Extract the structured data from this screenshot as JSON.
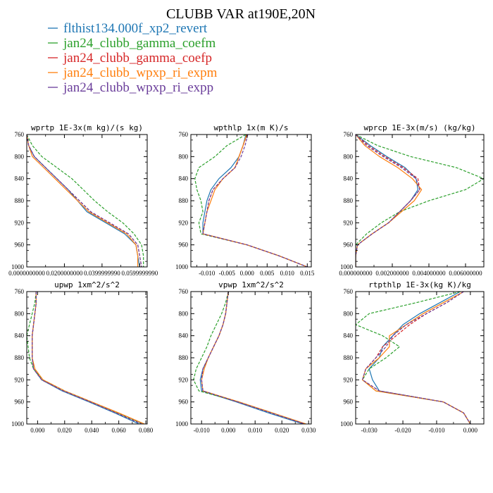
{
  "figure": {
    "title": "CLUBB VAR at190E,20N",
    "y_axis": {
      "ylim": [
        760,
        1000
      ],
      "ticks": [
        760,
        800,
        840,
        880,
        920,
        960,
        1000
      ],
      "inverted": true
    }
  },
  "legend": {
    "placement": "top-left",
    "items": [
      {
        "label": "flthist134.000f_xp2_revert",
        "color": "#1f77b4",
        "dash": "solid"
      },
      {
        "label": "jan24_clubb_gamma_coefm",
        "color": "#2ca02c",
        "dash": "dashed"
      },
      {
        "label": "jan24_clubb_gamma_coefp",
        "color": "#d62728",
        "dash": "dashed"
      },
      {
        "label": "jan24_clubb_wpxp_ri_expm",
        "color": "#ff7f0e",
        "dash": "solid"
      },
      {
        "label": "jan24_clubb_wpxp_ri_expp",
        "color": "#6a3d9a",
        "dash": "dashed"
      }
    ]
  },
  "chart_data": [
    {
      "type": "line",
      "title": "wprtp  1E-3x(m kg)/(s kg)",
      "xlim": [
        0,
        0.064
      ],
      "xticks": [
        "0.0000000000",
        "0.0200000000",
        "0.0399999990",
        "0.0599999990"
      ],
      "xtick_values": [
        0,
        0.02,
        0.04,
        0.06
      ],
      "y": [
        760,
        780,
        800,
        820,
        840,
        860,
        880,
        900,
        920,
        940,
        960,
        980,
        1000
      ],
      "series": [
        {
          "x": [
            0.0,
            0.001,
            0.004,
            0.01,
            0.016,
            0.022,
            0.027,
            0.032,
            0.042,
            0.052,
            0.058,
            0.059,
            0.06
          ]
        },
        {
          "x": [
            0.0,
            0.003,
            0.008,
            0.016,
            0.024,
            0.03,
            0.036,
            0.043,
            0.051,
            0.057,
            0.061,
            0.062,
            0.062
          ]
        },
        {
          "x": [
            0.0,
            0.001,
            0.004,
            0.01,
            0.016,
            0.022,
            0.028,
            0.034,
            0.044,
            0.054,
            0.059,
            0.06,
            0.061
          ]
        },
        {
          "x": [
            0.0,
            0.001,
            0.003,
            0.009,
            0.015,
            0.021,
            0.027,
            0.033,
            0.043,
            0.053,
            0.058,
            0.059,
            0.059
          ]
        },
        {
          "x": [
            0.0,
            0.001,
            0.004,
            0.01,
            0.016,
            0.022,
            0.028,
            0.034,
            0.044,
            0.054,
            0.059,
            0.06,
            0.061
          ]
        }
      ]
    },
    {
      "type": "line",
      "title": "wpthlp  1x(m K)/s",
      "xlim": [
        -0.014,
        0.016
      ],
      "xticks": [
        "-0.010",
        "-0.005",
        "0.000",
        "0.005",
        "0.010",
        "0.015"
      ],
      "xtick_values": [
        -0.01,
        -0.005,
        0,
        0.005,
        0.01,
        0.015
      ],
      "y": [
        760,
        780,
        800,
        820,
        840,
        860,
        880,
        900,
        920,
        940,
        960,
        980,
        1000
      ],
      "series": [
        {
          "x": [
            -0.0003,
            -0.001,
            -0.002,
            -0.004,
            -0.007,
            -0.009,
            -0.01,
            -0.0105,
            -0.011,
            -0.011,
            0.0,
            0.008,
            0.015
          ]
        },
        {
          "x": [
            -0.0003,
            -0.005,
            -0.008,
            -0.012,
            -0.013,
            -0.0125,
            -0.0115,
            -0.011,
            -0.012,
            -0.0115,
            0.0,
            0.008,
            0.015
          ]
        },
        {
          "x": [
            0.0,
            -0.001,
            -0.002,
            -0.003,
            -0.006,
            -0.0085,
            -0.0095,
            -0.01,
            -0.0105,
            -0.011,
            0.0,
            0.008,
            0.015
          ]
        },
        {
          "x": [
            -0.0001,
            -0.001,
            -0.002,
            -0.003,
            -0.006,
            -0.008,
            -0.009,
            -0.01,
            -0.0105,
            -0.011,
            0.0,
            0.008,
            0.015
          ]
        },
        {
          "x": [
            0.0002,
            -0.0005,
            -0.0015,
            -0.003,
            -0.006,
            -0.0085,
            -0.0095,
            -0.01,
            -0.0105,
            -0.011,
            0.0,
            0.008,
            0.015
          ]
        }
      ]
    },
    {
      "type": "line",
      "title": "wprcp  1E-3x(m/s) (kg/kg)",
      "xlim": [
        0,
        0.007
      ],
      "xticks": [
        "0.000000000",
        "0.002000000",
        "0.004000000",
        "0.006000000"
      ],
      "xtick_values": [
        0,
        0.002,
        0.004,
        0.006
      ],
      "y": [
        760,
        780,
        800,
        820,
        840,
        860,
        880,
        900,
        920,
        940,
        960,
        980,
        1000
      ],
      "series": [
        {
          "x": [
            0.0,
            0.0008,
            0.0017,
            0.0027,
            0.0033,
            0.0034,
            0.003,
            0.0024,
            0.0018,
            0.0009,
            0.0001,
            0.0,
            0.0
          ]
        },
        {
          "x": [
            0.0,
            0.0012,
            0.003,
            0.0055,
            0.007,
            0.006,
            0.004,
            0.0024,
            0.0014,
            0.0006,
            0.0,
            0.0,
            0.0
          ]
        },
        {
          "x": [
            0.0,
            0.0007,
            0.0016,
            0.0026,
            0.0034,
            0.0035,
            0.003,
            0.0024,
            0.0018,
            0.0009,
            0.0001,
            0.0,
            0.0
          ]
        },
        {
          "x": [
            0.0,
            0.0005,
            0.0013,
            0.0023,
            0.0031,
            0.0036,
            0.0032,
            0.0025,
            0.0018,
            0.0009,
            0.0001,
            0.0,
            0.0
          ]
        },
        {
          "x": [
            0.0,
            0.0006,
            0.0015,
            0.0025,
            0.0033,
            0.0035,
            0.003,
            0.0024,
            0.0018,
            0.0009,
            0.0001,
            0.0,
            0.0
          ]
        }
      ]
    },
    {
      "type": "line",
      "title": "upwp  1xm^2/s^2",
      "xlim": [
        -0.008,
        0.081
      ],
      "xticks": [
        "0.000",
        "0.020",
        "0.040",
        "0.060",
        "0.080"
      ],
      "xtick_values": [
        0,
        0.02,
        0.04,
        0.06,
        0.08
      ],
      "y": [
        760,
        780,
        800,
        820,
        840,
        860,
        880,
        900,
        920,
        940,
        960,
        980,
        1000
      ],
      "series": [
        {
          "x": [
            -0.001,
            -0.001,
            -0.002,
            -0.003,
            -0.004,
            -0.004,
            -0.004,
            -0.003,
            0.003,
            0.018,
            0.038,
            0.057,
            0.075
          ]
        },
        {
          "x": [
            -0.001,
            -0.002,
            -0.004,
            -0.006,
            -0.008,
            -0.007,
            -0.006,
            -0.003,
            0.004,
            0.02,
            0.04,
            0.059,
            0.078
          ]
        },
        {
          "x": [
            -0.001,
            -0.001,
            -0.002,
            -0.003,
            -0.004,
            -0.004,
            -0.004,
            -0.003,
            0.003,
            0.019,
            0.039,
            0.058,
            0.077
          ]
        },
        {
          "x": [
            -0.001,
            -0.001,
            -0.002,
            -0.003,
            -0.004,
            -0.004,
            -0.004,
            -0.002,
            0.004,
            0.02,
            0.04,
            0.06,
            0.079
          ]
        },
        {
          "x": [
            -0.001,
            -0.001,
            -0.002,
            -0.003,
            -0.004,
            -0.004,
            -0.004,
            -0.003,
            0.003,
            0.019,
            0.039,
            0.058,
            0.077
          ]
        }
      ]
    },
    {
      "type": "line",
      "title": "vpwp  1xm^2/s^2",
      "xlim": [
        -0.014,
        0.031
      ],
      "xticks": [
        "-0.010",
        "0.000",
        "0.010",
        "0.020",
        "0.030"
      ],
      "xtick_values": [
        -0.01,
        0,
        0.01,
        0.02,
        0.03
      ],
      "y": [
        760,
        780,
        800,
        820,
        840,
        860,
        880,
        900,
        920,
        940,
        960,
        980,
        1000
      ],
      "series": [
        {
          "x": [
            0.0,
            -0.0005,
            -0.001,
            -0.002,
            -0.0035,
            -0.0055,
            -0.0075,
            -0.0095,
            -0.0105,
            -0.01,
            0.003,
            0.015,
            0.028
          ]
        },
        {
          "x": [
            0.0,
            -0.001,
            -0.0025,
            -0.0045,
            -0.0065,
            -0.008,
            -0.01,
            -0.012,
            -0.013,
            -0.011,
            0.004,
            0.0165,
            0.029
          ]
        },
        {
          "x": [
            0.0,
            -0.0005,
            -0.001,
            -0.002,
            -0.0035,
            -0.0055,
            -0.0075,
            -0.0095,
            -0.01,
            -0.0095,
            0.0035,
            0.016,
            0.0285
          ]
        },
        {
          "x": [
            0.0,
            -0.0005,
            -0.001,
            -0.002,
            -0.0035,
            -0.0055,
            -0.0075,
            -0.009,
            -0.01,
            -0.0095,
            0.004,
            0.0165,
            0.029
          ]
        },
        {
          "x": [
            0.0,
            -0.0005,
            -0.001,
            -0.002,
            -0.0035,
            -0.0055,
            -0.0075,
            -0.0095,
            -0.01,
            -0.0095,
            0.0035,
            0.016,
            0.0285
          ]
        }
      ]
    },
    {
      "type": "line",
      "title": "rtpthlp  1E-3x(kg K)/kg",
      "xlim": [
        -0.034,
        0.004
      ],
      "xticks": [
        "-0.030",
        "-0.020",
        "-0.010",
        "0.000"
      ],
      "xtick_values": [
        -0.03,
        -0.02,
        -0.01,
        0
      ],
      "y": [
        760,
        780,
        800,
        820,
        840,
        860,
        880,
        900,
        920,
        940,
        960,
        980,
        1000
      ],
      "series": [
        {
          "x": [
            -0.003,
            -0.009,
            -0.015,
            -0.02,
            -0.023,
            -0.026,
            -0.027,
            -0.03,
            -0.029,
            -0.027,
            -0.008,
            -0.002,
            0.0
          ]
        },
        {
          "x": [
            -0.003,
            -0.016,
            -0.03,
            -0.034,
            -0.026,
            -0.021,
            -0.025,
            -0.03,
            -0.032,
            -0.028,
            -0.008,
            -0.002,
            0.0
          ]
        },
        {
          "x": [
            -0.002,
            -0.007,
            -0.013,
            -0.018,
            -0.022,
            -0.026,
            -0.028,
            -0.031,
            -0.032,
            -0.027,
            -0.008,
            -0.002,
            0.0
          ]
        },
        {
          "x": [
            -0.002,
            -0.008,
            -0.014,
            -0.019,
            -0.024,
            -0.024,
            -0.027,
            -0.031,
            -0.032,
            -0.028,
            -0.008,
            -0.002,
            0.0
          ]
        },
        {
          "x": [
            -0.002,
            -0.007,
            -0.013,
            -0.019,
            -0.023,
            -0.025,
            -0.028,
            -0.031,
            -0.032,
            -0.027,
            -0.008,
            -0.002,
            0.0
          ]
        }
      ]
    }
  ]
}
